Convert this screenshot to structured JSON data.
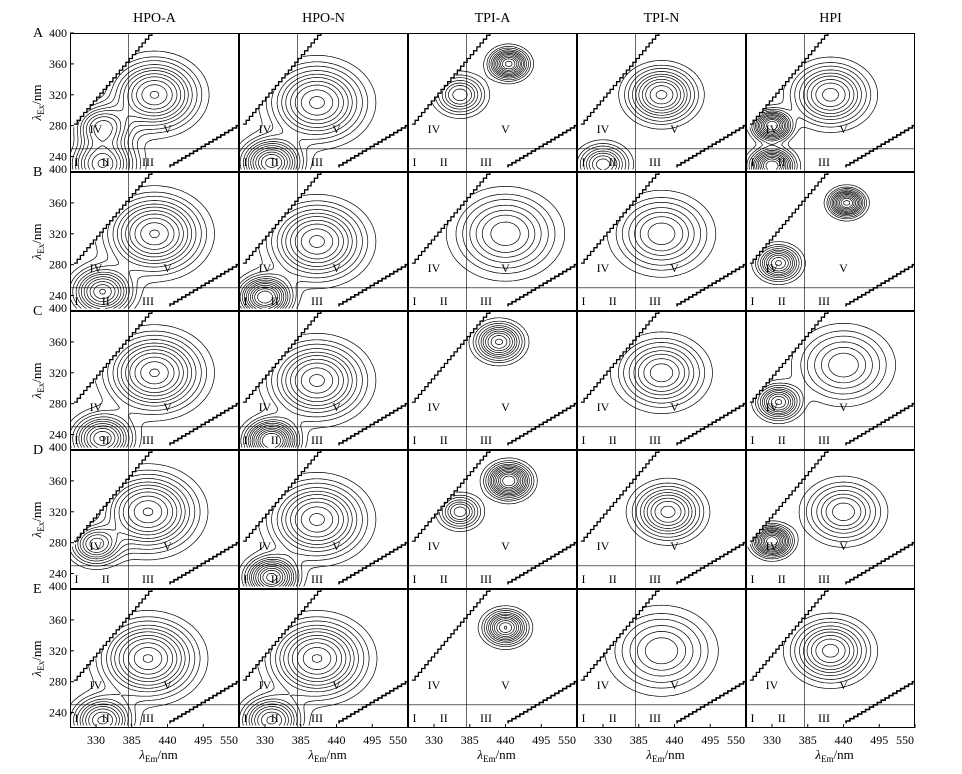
{
  "chart_data": {
    "type": "contour",
    "columns": [
      "HPO-A",
      "HPO-N",
      "TPI-A",
      "TPI-N",
      "HPI"
    ],
    "rows": [
      "A",
      "B",
      "C",
      "D",
      "E"
    ],
    "x_axis": {
      "label_main": "λ",
      "label_sub": "Em",
      "label_unit": "/nm",
      "range": [
        290,
        550
      ],
      "ticks": [
        330,
        385,
        440,
        495,
        550
      ],
      "tick_labels": [
        "330",
        "385",
        "440",
        "495",
        "550"
      ]
    },
    "y_axis": {
      "label_main": "λ",
      "label_sub": "Ex",
      "label_unit": "/nm",
      "range": [
        220,
        400
      ],
      "ticks": [
        240,
        280,
        320,
        360,
        400
      ],
      "tick_labels": [
        "240",
        "280",
        "320",
        "360",
        "400"
      ]
    },
    "region_boundaries": {
      "em": 380,
      "ex": 250
    },
    "regions": [
      {
        "label": "I",
        "em": 300,
        "ex": 233
      },
      {
        "label": "II",
        "em": 345,
        "ex": 233
      },
      {
        "label": "III",
        "em": 410,
        "ex": 233
      },
      {
        "label": "IV",
        "em": 330,
        "ex": 276
      },
      {
        "label": "V",
        "em": 440,
        "ex": 276
      }
    ],
    "peak_maps": [
      [
        {
          "label": "HPO-A",
          "peaks": [
            {
              "em": 420,
              "ex": 320,
              "h": 1.0,
              "s": 50
            },
            {
              "em": 340,
              "ex": 278,
              "h": 0.8,
              "s": 35
            },
            {
              "em": 340,
              "ex": 230,
              "h": 1.0,
              "s": 40
            }
          ]
        },
        {
          "label": "HPO-N",
          "peaks": [
            {
              "em": 410,
              "ex": 310,
              "h": 0.9,
              "s": 55
            },
            {
              "em": 340,
              "ex": 232,
              "h": 1.2,
              "s": 35
            }
          ]
        },
        {
          "label": "TPI-A",
          "peaks": [
            {
              "em": 445,
              "ex": 360,
              "h": 1.2,
              "s": 22
            },
            {
              "em": 370,
              "ex": 320,
              "h": 0.6,
              "s": 30
            }
          ]
        },
        {
          "label": "TPI-N",
          "peaks": [
            {
              "em": 420,
              "ex": 320,
              "h": 0.9,
              "s": 40
            },
            {
              "em": 330,
              "ex": 230,
              "h": 0.7,
              "s": 30
            }
          ]
        },
        {
          "label": "HPI",
          "peaks": [
            {
              "em": 330,
              "ex": 280,
              "h": 1.3,
              "s": 22
            },
            {
              "em": 420,
              "ex": 320,
              "h": 0.8,
              "s": 45
            },
            {
              "em": 330,
              "ex": 228,
              "h": 1.3,
              "s": 25
            }
          ]
        }
      ],
      [
        {
          "label": "HPO-A",
          "peaks": [
            {
              "em": 420,
              "ex": 320,
              "h": 1.0,
              "s": 55
            },
            {
              "em": 340,
              "ex": 245,
              "h": 1.0,
              "s": 35
            }
          ]
        },
        {
          "label": "HPO-N",
          "peaks": [
            {
              "em": 410,
              "ex": 310,
              "h": 0.9,
              "s": 55
            },
            {
              "em": 330,
              "ex": 238,
              "h": 1.3,
              "s": 30
            }
          ]
        },
        {
          "label": "TPI-A",
          "peaks": [
            {
              "em": 440,
              "ex": 320,
              "h": 0.6,
              "s": 60
            }
          ]
        },
        {
          "label": "TPI-N",
          "peaks": [
            {
              "em": 420,
              "ex": 320,
              "h": 0.6,
              "s": 55
            }
          ]
        },
        {
          "label": "HPI",
          "peaks": [
            {
              "em": 445,
              "ex": 360,
              "h": 1.2,
              "s": 20
            },
            {
              "em": 340,
              "ex": 282,
              "h": 0.9,
              "s": 25
            }
          ]
        }
      ],
      [
        {
          "label": "HPO-A",
          "peaks": [
            {
              "em": 420,
              "ex": 320,
              "h": 1.0,
              "s": 55
            },
            {
              "em": 340,
              "ex": 235,
              "h": 1.0,
              "s": 35
            }
          ]
        },
        {
          "label": "HPO-N",
          "peaks": [
            {
              "em": 410,
              "ex": 310,
              "h": 0.9,
              "s": 55
            },
            {
              "em": 340,
              "ex": 232,
              "h": 1.4,
              "s": 30
            }
          ]
        },
        {
          "label": "TPI-A",
          "peaks": [
            {
              "em": 430,
              "ex": 360,
              "h": 0.9,
              "s": 28
            }
          ]
        },
        {
          "label": "TPI-N",
          "peaks": [
            {
              "em": 420,
              "ex": 320,
              "h": 0.7,
              "s": 50
            }
          ]
        },
        {
          "label": "HPI",
          "peaks": [
            {
              "em": 340,
              "ex": 282,
              "h": 0.9,
              "s": 25
            },
            {
              "em": 440,
              "ex": 330,
              "h": 0.5,
              "s": 55
            }
          ]
        }
      ],
      [
        {
          "label": "HPO-A",
          "peaks": [
            {
              "em": 410,
              "ex": 320,
              "h": 1.0,
              "s": 55
            },
            {
              "em": 330,
              "ex": 278,
              "h": 0.8,
              "s": 30
            }
          ]
        },
        {
          "label": "HPO-N",
          "peaks": [
            {
              "em": 410,
              "ex": 310,
              "h": 0.9,
              "s": 55
            },
            {
              "em": 340,
              "ex": 235,
              "h": 1.2,
              "s": 30
            }
          ]
        },
        {
          "label": "TPI-A",
          "peaks": [
            {
              "em": 445,
              "ex": 360,
              "h": 1.3,
              "s": 25
            },
            {
              "em": 370,
              "ex": 320,
              "h": 0.6,
              "s": 25
            }
          ]
        },
        {
          "label": "TPI-N",
          "peaks": [
            {
              "em": 430,
              "ex": 320,
              "h": 0.8,
              "s": 40
            }
          ]
        },
        {
          "label": "HPI",
          "peaks": [
            {
              "em": 330,
              "ex": 282,
              "h": 1.3,
              "s": 22
            },
            {
              "em": 440,
              "ex": 320,
              "h": 0.6,
              "s": 45
            }
          ]
        }
      ],
      [
        {
          "label": "HPO-A",
          "peaks": [
            {
              "em": 410,
              "ex": 310,
              "h": 1.0,
              "s": 55
            },
            {
              "em": 340,
              "ex": 230,
              "h": 0.9,
              "s": 35
            }
          ]
        },
        {
          "label": "HPO-N",
          "peaks": [
            {
              "em": 410,
              "ex": 310,
              "h": 1.0,
              "s": 55
            },
            {
              "em": 340,
              "ex": 230,
              "h": 0.9,
              "s": 35
            }
          ]
        },
        {
          "label": "TPI-A",
          "peaks": [
            {
              "em": 440,
              "ex": 350,
              "h": 1.0,
              "s": 25
            }
          ]
        },
        {
          "label": "TPI-N",
          "peaks": [
            {
              "em": 420,
              "ex": 320,
              "h": 0.5,
              "s": 60
            }
          ]
        },
        {
          "label": "HPI",
          "peaks": [
            {
              "em": 420,
              "ex": 320,
              "h": 0.8,
              "s": 45
            }
          ]
        }
      ]
    ],
    "line_color": "#000000",
    "background_color": "#ffffff"
  }
}
